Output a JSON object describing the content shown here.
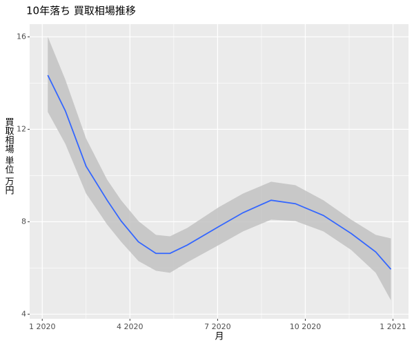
{
  "chart_data": {
    "type": "line",
    "title": "10年落ち 買取相場推移",
    "x_label": "月",
    "y_label": "買取相場 単位 万円",
    "x": [
      1.19,
      1.79,
      2.5,
      3.22,
      3.7,
      4.29,
      4.89,
      5.37,
      5.96,
      7.04,
      7.87,
      8.83,
      9.66,
      10.62,
      11.57,
      12.41,
      12.93
    ],
    "values": [
      14.34,
      12.8,
      10.4,
      8.93,
      8.03,
      7.13,
      6.63,
      6.63,
      6.99,
      7.79,
      8.39,
      8.93,
      8.78,
      8.27,
      7.49,
      6.69,
      5.94
    ],
    "ci_upper": [
      16.0,
      14.15,
      11.6,
      9.82,
      8.93,
      8.03,
      7.43,
      7.37,
      7.73,
      8.63,
      9.22,
      9.73,
      9.58,
      8.93,
      8.09,
      7.43,
      7.28
    ],
    "ci_lower": [
      12.75,
      11.37,
      9.22,
      7.88,
      7.13,
      6.3,
      5.88,
      5.79,
      6.24,
      6.99,
      7.58,
      8.09,
      8.03,
      7.58,
      6.78,
      5.79,
      4.6
    ],
    "color": "#3366ff",
    "band_color": "#c2c2c2",
    "xlim": [
      0.57,
      13.53
    ],
    "ylim": [
      3.8,
      16.55
    ],
    "xticks": [
      {
        "value": 1,
        "label": "1 2020"
      },
      {
        "value": 4,
        "label": "4 2020"
      },
      {
        "value": 7,
        "label": "7 2020"
      },
      {
        "value": 10,
        "label": "10 2020"
      },
      {
        "value": 13,
        "label": "1 2021"
      }
    ],
    "yticks": [
      4,
      8,
      12,
      16
    ],
    "grid": true
  }
}
